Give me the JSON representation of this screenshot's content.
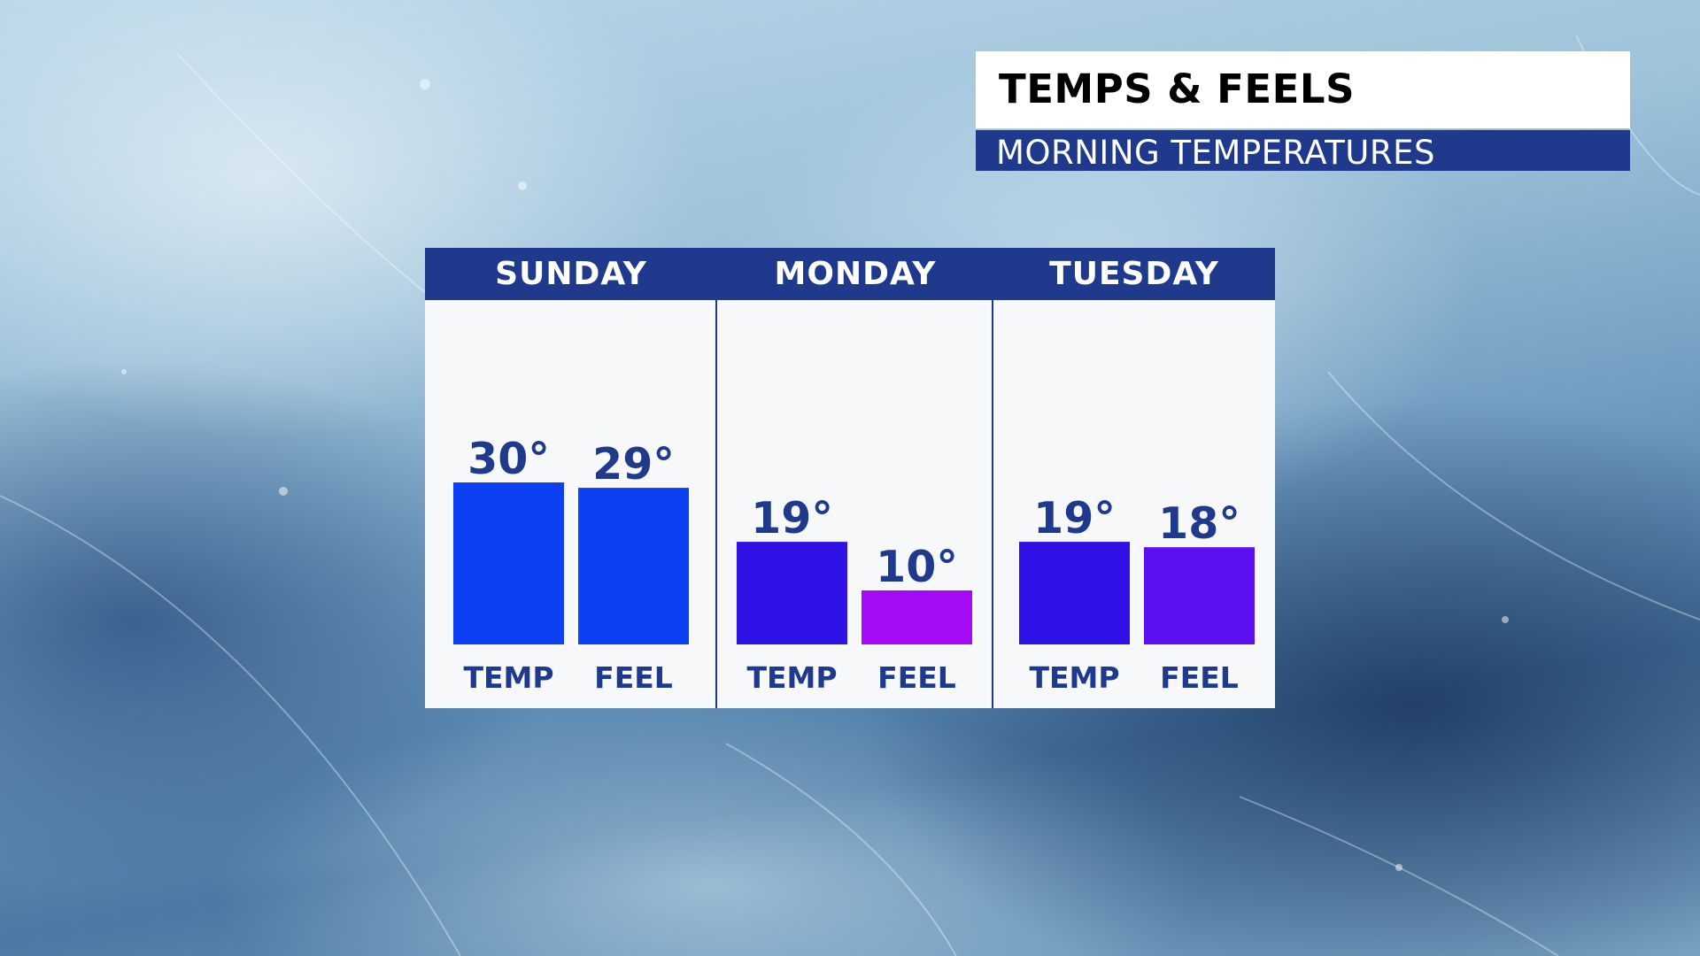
{
  "header": {
    "title": "TEMPS & FEELS",
    "subtitle": "MORNING TEMPERATURES"
  },
  "colors": {
    "header_bg": "#1f3a8c",
    "panel_bg": "#f7f8fa",
    "label_color": "#1f3a8c"
  },
  "chart_data": {
    "type": "bar",
    "title": "TEMPS & FEELS",
    "subtitle": "MORNING TEMPERATURES",
    "groups": [
      {
        "day": "SUNDAY",
        "bars": [
          {
            "label": "TEMP",
            "value": 30,
            "display": "30°",
            "color": "#0d3ff3"
          },
          {
            "label": "FEEL",
            "value": 29,
            "display": "29°",
            "color": "#0d3ff3"
          }
        ]
      },
      {
        "day": "MONDAY",
        "bars": [
          {
            "label": "TEMP",
            "value": 19,
            "display": "19°",
            "color": "#3112e6"
          },
          {
            "label": "FEEL",
            "value": 10,
            "display": "10°",
            "color": "#a50cf5"
          }
        ]
      },
      {
        "day": "TUESDAY",
        "bars": [
          {
            "label": "TEMP",
            "value": 19,
            "display": "19°",
            "color": "#3112e6"
          },
          {
            "label": "FEEL",
            "value": 18,
            "display": "18°",
            "color": "#5d10ef"
          }
        ]
      }
    ],
    "ylim": [
      0,
      40
    ],
    "grid": false,
    "legend": "none"
  }
}
